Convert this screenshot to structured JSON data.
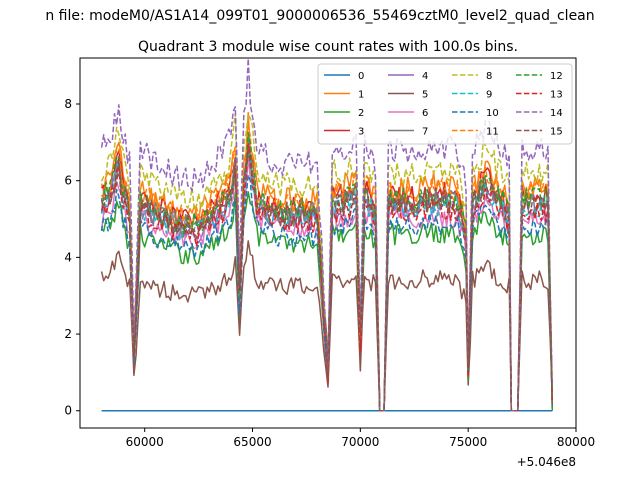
{
  "figure_title": "n file: modeM0/AS1A14_099T01_9000006536_55469cztM0_level2_quad_clean",
  "chart_data": {
    "type": "line",
    "title": "Quadrant 3 module wise count rates with 100.0s bins.",
    "xlabel": "",
    "ylabel": "",
    "x_offset_label": "+5.046e8",
    "xlim": [
      57000,
      80000
    ],
    "ylim": [
      -0.45,
      9.2
    ],
    "x_ticks": [
      60000,
      65000,
      70000,
      75000,
      80000
    ],
    "x_tick_labels": [
      "60000",
      "65000",
      "70000",
      "75000",
      "80000"
    ],
    "y_ticks": [
      0,
      2,
      4,
      6,
      8
    ],
    "y_tick_labels": [
      "0",
      "2",
      "4",
      "6",
      "8"
    ],
    "x_start": 58000,
    "x_end": 78900,
    "bin": 100,
    "grid": false,
    "legend_position": "top-right",
    "legend_columns": 4,
    "profile_anchors": [
      [
        58000,
        1.0
      ],
      [
        58400,
        1.05
      ],
      [
        58800,
        1.18
      ],
      [
        59000,
        1.05
      ],
      [
        59300,
        0.95
      ],
      [
        59500,
        0.25
      ],
      [
        59800,
        1.0
      ],
      [
        60500,
        0.95
      ],
      [
        61500,
        0.9
      ],
      [
        62500,
        0.88
      ],
      [
        63500,
        0.98
      ],
      [
        64000,
        1.05
      ],
      [
        64200,
        1.2
      ],
      [
        64400,
        0.55
      ],
      [
        64600,
        1.1
      ],
      [
        64800,
        1.3
      ],
      [
        65200,
        1.0
      ],
      [
        66000,
        0.95
      ],
      [
        67000,
        0.95
      ],
      [
        68000,
        0.95
      ],
      [
        68300,
        0.5
      ],
      [
        68500,
        0.2
      ],
      [
        68700,
        1.0
      ],
      [
        69500,
        1.02
      ],
      [
        69800,
        1.05
      ],
      [
        70000,
        0.35
      ],
      [
        70200,
        1.05
      ],
      [
        70700,
        0.95
      ],
      [
        70900,
        0.0
      ],
      [
        71100,
        0.0
      ],
      [
        71300,
        1.0
      ],
      [
        72500,
        1.0
      ],
      [
        73500,
        1.02
      ],
      [
        74500,
        1.0
      ],
      [
        74900,
        0.85
      ],
      [
        75000,
        0.2
      ],
      [
        75200,
        1.0
      ],
      [
        75800,
        1.1
      ],
      [
        76500,
        1.0
      ],
      [
        76900,
        0.95
      ],
      [
        77000,
        0.0
      ],
      [
        77300,
        0.0
      ],
      [
        77500,
        1.0
      ],
      [
        78700,
        1.0
      ],
      [
        78900,
        0.05
      ]
    ],
    "series": [
      {
        "name": "0",
        "color": "#1f77b4",
        "dash": "solid",
        "base": 0.0
      },
      {
        "name": "1",
        "color": "#ff7f0e",
        "dash": "solid",
        "base": 5.8
      },
      {
        "name": "2",
        "color": "#2ca02c",
        "dash": "solid",
        "base": 4.6
      },
      {
        "name": "3",
        "color": "#d62728",
        "dash": "solid",
        "base": 5.6
      },
      {
        "name": "4",
        "color": "#9467bd",
        "dash": "solid",
        "base": 5.3
      },
      {
        "name": "5",
        "color": "#8c564b",
        "dash": "solid",
        "base": 3.4
      },
      {
        "name": "6",
        "color": "#e377c2",
        "dash": "solid",
        "base": 5.0
      },
      {
        "name": "7",
        "color": "#7f7f7f",
        "dash": "solid",
        "base": 5.4
      },
      {
        "name": "8",
        "color": "#bcbd22",
        "dash": "dashed",
        "base": 6.2
      },
      {
        "name": "9",
        "color": "#17becf",
        "dash": "dashed",
        "base": 5.3
      },
      {
        "name": "10",
        "color": "#1f77b4",
        "dash": "dashed",
        "base": 4.8
      },
      {
        "name": "11",
        "color": "#ff7f0e",
        "dash": "dashed",
        "base": 5.7
      },
      {
        "name": "12",
        "color": "#2ca02c",
        "dash": "dashed",
        "base": 5.5
      },
      {
        "name": "13",
        "color": "#d62728",
        "dash": "dashed",
        "base": 5.2
      },
      {
        "name": "14",
        "color": "#9467bd",
        "dash": "dashed",
        "base": 6.8
      },
      {
        "name": "15",
        "color": "#8c564b",
        "dash": "dashed",
        "base": 5.4
      }
    ]
  }
}
